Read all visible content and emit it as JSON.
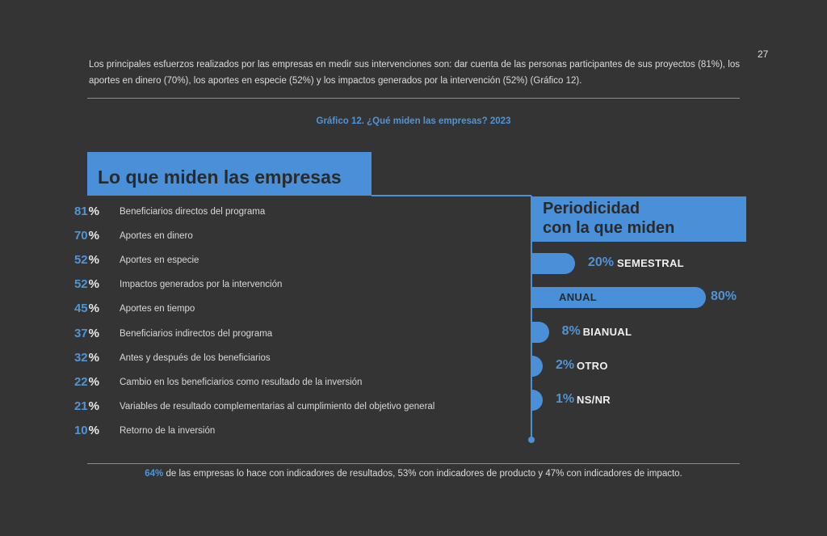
{
  "page_number": "27",
  "intro_text": "Los principales esfuerzos realizados por las empresas en medir sus intervenciones son: dar cuenta de las personas participantes de sus proyectos (81%), los aportes en dinero (70%), los aportes en especie (52%) y los impactos generados por la intervención (52%) (Gráfico 12).",
  "chart_title": "Gráfico 12. ¿Qué miden las empresas? 2023",
  "colors": {
    "accent": "#4a90d9",
    "background": "#343434",
    "dark_text": "#2a2a2a"
  },
  "chart_data": [
    {
      "type": "table",
      "title": "Lo que miden las empresas",
      "percent_sign": "%",
      "items": [
        {
          "value": 81,
          "label": "Beneficiarios directos del programa"
        },
        {
          "value": 70,
          "label": "Aportes en dinero"
        },
        {
          "value": 52,
          "label": "Aportes en especie"
        },
        {
          "value": 52,
          "label": "Impactos generados por la intervención"
        },
        {
          "value": 45,
          "label": "Aportes en tiempo"
        },
        {
          "value": 37,
          "label": "Beneficiarios indirectos del programa"
        },
        {
          "value": 32,
          "label": "Antes y después de los beneficiarios"
        },
        {
          "value": 22,
          "label": "Cambio en los beneficiarios como resultado de la inversión"
        },
        {
          "value": 21,
          "label": "Variables de resultado complementarias al cumplimiento del objetivo general"
        },
        {
          "value": 10,
          "label": "Retorno de la inversión"
        }
      ]
    },
    {
      "type": "bar",
      "title_line1": "Periodicidad",
      "title_line2": "con la que miden",
      "categories": [
        "SEMESTRAL",
        "ANUAL",
        "BIANUAL",
        "OTRO",
        "NS/NR"
      ],
      "values": [
        20,
        80,
        8,
        2,
        1
      ],
      "value_labels": [
        "20%",
        "80%",
        "8%",
        "2%",
        "1%"
      ],
      "xlim": [
        0,
        100
      ]
    }
  ],
  "footer": {
    "highlight": "64%",
    "text": " de las empresas lo hace con indicadores de resultados, 53% con indicadores de producto y 47% con indicadores de impacto."
  }
}
